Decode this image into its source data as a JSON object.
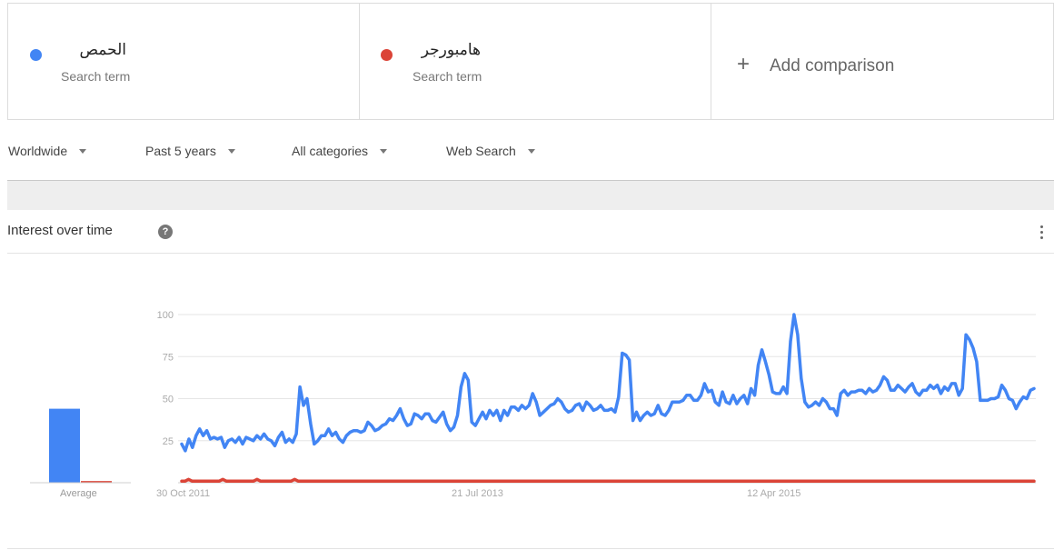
{
  "terms": [
    {
      "name": "الحمص",
      "sub": "Search term",
      "color": "#4285f4"
    },
    {
      "name": "هامبورجر",
      "sub": "Search term",
      "color": "#db4437"
    }
  ],
  "add_comparison": {
    "icon": "+",
    "label": "Add comparison"
  },
  "filters": [
    {
      "label": "Worldwide"
    },
    {
      "label": "Past 5 years"
    },
    {
      "label": "All categories"
    },
    {
      "label": "Web Search"
    }
  ],
  "panel": {
    "title": "Interest over time",
    "help_glyph": "?",
    "menu_icon": "more-vert-icon"
  },
  "chart_data": {
    "type": "line",
    "title": "Interest over time",
    "y_ticks": [
      "25",
      "50",
      "75",
      "100"
    ],
    "ylim": [
      0,
      100
    ],
    "x_ticks": [
      "30 Oct 2011",
      "21 Jul 2013",
      "12 Apr 2015"
    ],
    "grid": true,
    "average": {
      "label": "Average",
      "values": [
        44,
        1
      ]
    },
    "series": [
      {
        "name": "الحمص",
        "color": "#4285f4",
        "values": [
          23,
          19,
          26,
          21,
          28,
          32,
          28,
          31,
          26,
          27,
          26,
          27,
          21,
          25,
          26,
          24,
          27,
          23,
          27,
          26,
          25,
          28,
          26,
          29,
          26,
          25,
          22,
          27,
          30,
          24,
          26,
          24,
          29,
          57,
          46,
          50,
          35,
          23,
          25,
          28,
          28,
          32,
          28,
          30,
          26,
          24,
          28,
          30,
          31,
          31,
          30,
          31,
          36,
          34,
          31,
          32,
          34,
          35,
          38,
          37,
          40,
          44,
          38,
          34,
          35,
          41,
          40,
          38,
          41,
          41,
          37,
          36,
          39,
          42,
          35,
          31,
          33,
          40,
          57,
          65,
          61,
          36,
          34,
          38,
          42,
          38,
          43,
          40,
          43,
          37,
          43,
          40,
          45,
          45,
          43,
          46,
          44,
          46,
          53,
          48,
          40,
          42,
          44,
          46,
          47,
          50,
          48,
          44,
          42,
          43,
          46,
          47,
          43,
          48,
          46,
          43,
          44,
          46,
          43,
          43,
          44,
          42,
          51,
          77,
          76,
          73,
          37,
          42,
          37,
          40,
          42,
          40,
          41,
          46,
          41,
          40,
          43,
          48,
          48,
          48,
          49,
          52,
          52,
          49,
          49,
          52,
          59,
          54,
          55,
          48,
          46,
          54,
          48,
          47,
          52,
          47,
          50,
          52,
          47,
          56,
          52,
          70,
          79,
          72,
          64,
          54,
          53,
          53,
          57,
          53,
          84,
          100,
          88,
          62,
          48,
          45,
          46,
          48,
          46,
          50,
          48,
          44,
          44,
          40,
          53,
          55,
          52,
          54,
          54,
          55,
          55,
          53,
          56,
          54,
          55,
          58,
          63,
          61,
          55,
          55,
          58,
          56,
          54,
          57,
          59,
          54,
          52,
          55,
          55,
          58,
          56,
          58,
          53,
          57,
          55,
          59,
          59,
          52,
          56,
          88,
          85,
          80,
          72,
          49,
          49,
          49,
          50,
          50,
          51,
          58,
          55,
          50,
          49,
          44,
          48,
          51,
          50,
          55,
          56
        ]
      },
      {
        "name": "هامبورجر",
        "color": "#db4437",
        "values": [
          1,
          1,
          2,
          1,
          1,
          1,
          1,
          1,
          1,
          1,
          1,
          1,
          2,
          1,
          1,
          1,
          1,
          1,
          1,
          1,
          1,
          1,
          2,
          1,
          1,
          1,
          1,
          1,
          1,
          1,
          1,
          1,
          1,
          2,
          1,
          1,
          1,
          1,
          1,
          1,
          1,
          1,
          1,
          1,
          1,
          1,
          1,
          1,
          1,
          1,
          1,
          1,
          1,
          1,
          1,
          1,
          1,
          1,
          1,
          1,
          1,
          1,
          1,
          1,
          1,
          1,
          1,
          1,
          1,
          1,
          1,
          1,
          1,
          1,
          1,
          1,
          1,
          1,
          1,
          1,
          1,
          1,
          1,
          1,
          1,
          1,
          1,
          1,
          1,
          1,
          1,
          1,
          1,
          1,
          1,
          1,
          1,
          1,
          1,
          1,
          1,
          1,
          1,
          1,
          1,
          1,
          1,
          1,
          1,
          1,
          1,
          1,
          1,
          1,
          1,
          1,
          1,
          1,
          1,
          1,
          1,
          1,
          1,
          1,
          1,
          1,
          1,
          1,
          1,
          1,
          1,
          1,
          1,
          1,
          1,
          1,
          1,
          1,
          1,
          1,
          1,
          1,
          1,
          1,
          1,
          1,
          1,
          1,
          1,
          1,
          1,
          1,
          1,
          1,
          1,
          1,
          1,
          1,
          1,
          1,
          1,
          1,
          1,
          1,
          1,
          1,
          1,
          1,
          1,
          1,
          1,
          1,
          1,
          1,
          1,
          1,
          1,
          1,
          1,
          1,
          1,
          1,
          1,
          1,
          1,
          1,
          1,
          1,
          1,
          1,
          1,
          1,
          1,
          1,
          1,
          1,
          1,
          1,
          1,
          1,
          1,
          1,
          1,
          1,
          1,
          1,
          1,
          1,
          1,
          1,
          1,
          1,
          1,
          1,
          1,
          1,
          1,
          1,
          1,
          1,
          1,
          1,
          1,
          1,
          1,
          1,
          1,
          1,
          1,
          1,
          1,
          1,
          1,
          1,
          1,
          1,
          1,
          1,
          1,
          1,
          1,
          1,
          1,
          1,
          1,
          1,
          1,
          1,
          1,
          1
        ]
      }
    ]
  }
}
